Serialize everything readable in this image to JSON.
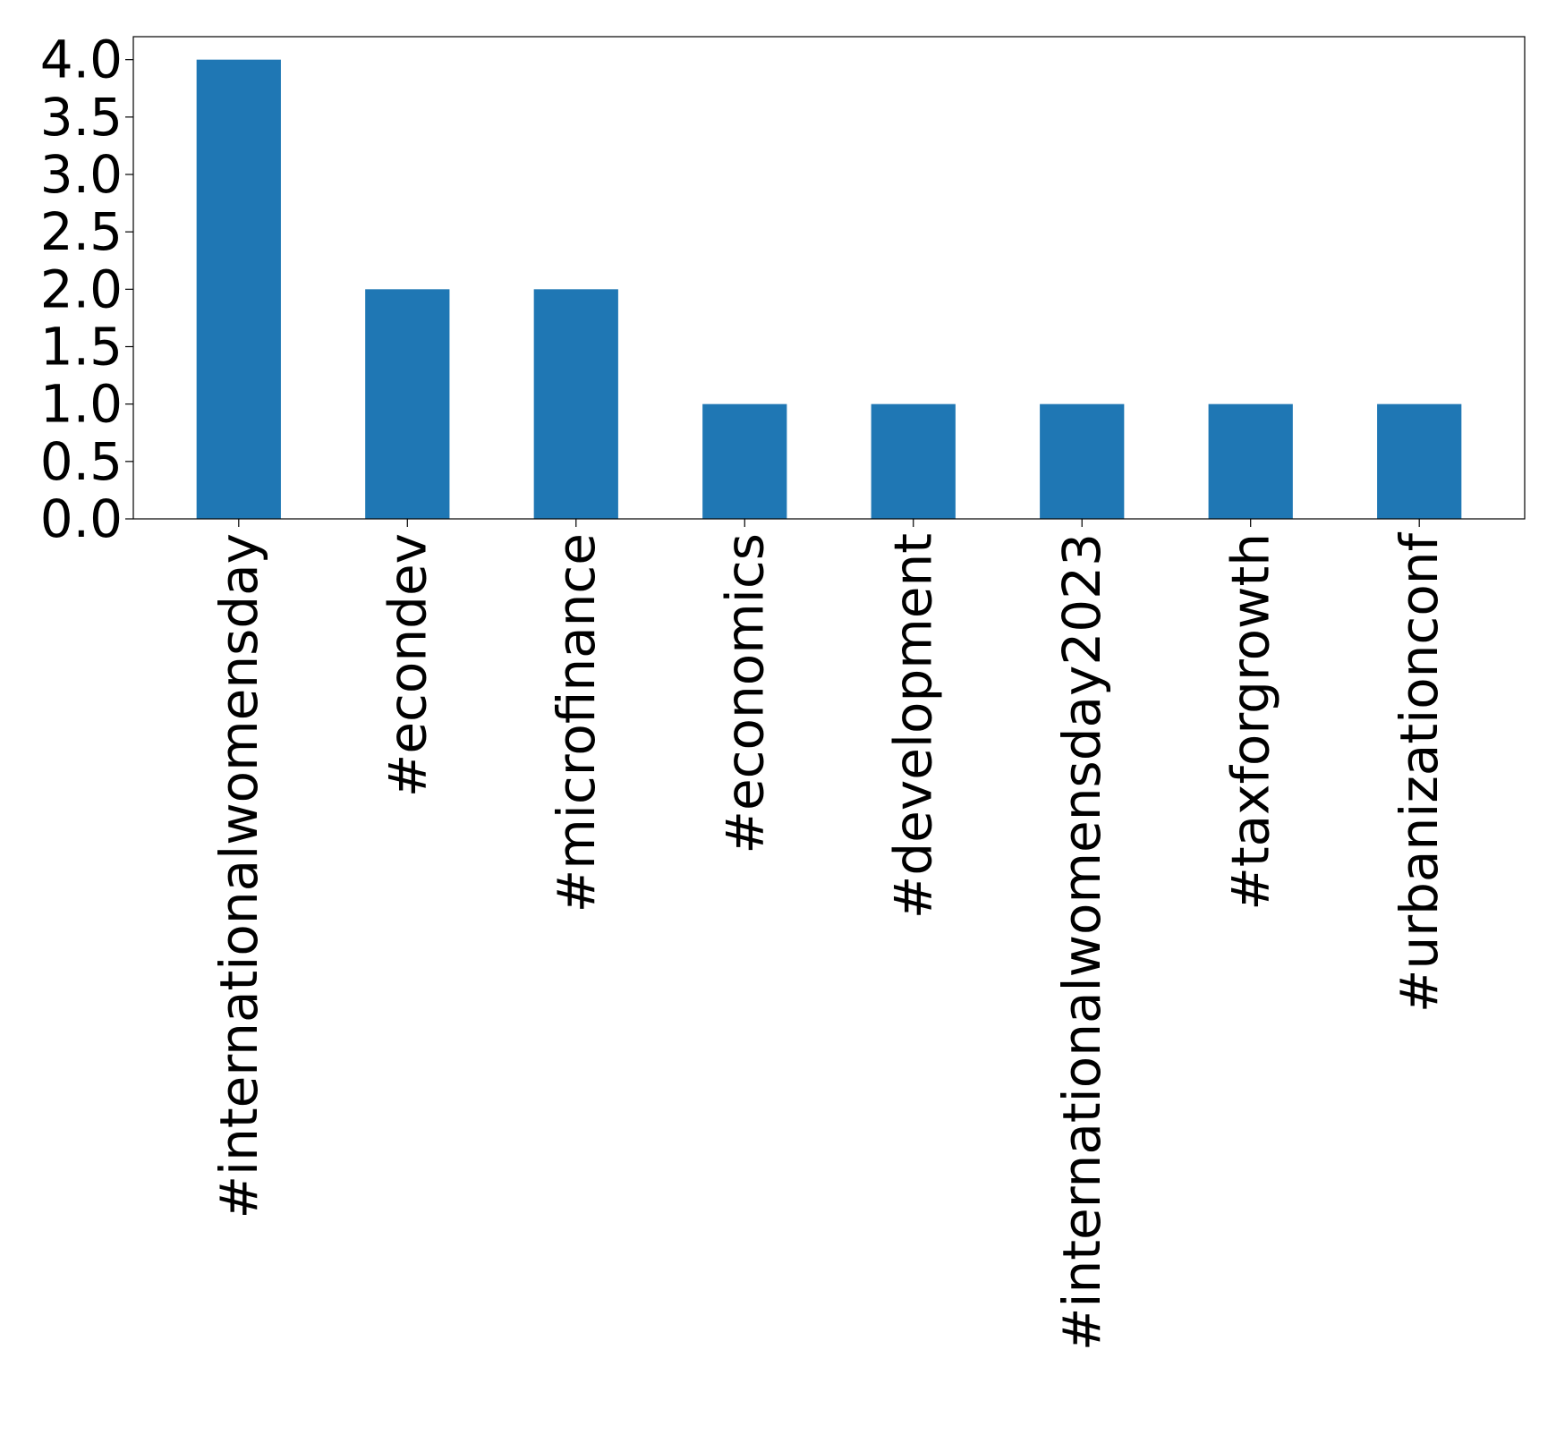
{
  "chart_data": {
    "type": "bar",
    "title": "",
    "xlabel": "",
    "ylabel": "",
    "categories": [
      "#internationalwomensday",
      "#econdev",
      "#microfinance",
      "#economics",
      "#development",
      "#internationalwomensday2023",
      "#taxforgrowth",
      "#urbanizationconf"
    ],
    "values": [
      4,
      2,
      2,
      1,
      1,
      1,
      1,
      1
    ],
    "ylim": [
      0,
      4.2
    ],
    "yticks": [
      "0.0",
      "0.5",
      "1.0",
      "1.5",
      "2.0",
      "2.5",
      "3.0",
      "3.5",
      "4.0"
    ],
    "grid": false,
    "legend": false,
    "bar_color": "#1f77b4"
  }
}
